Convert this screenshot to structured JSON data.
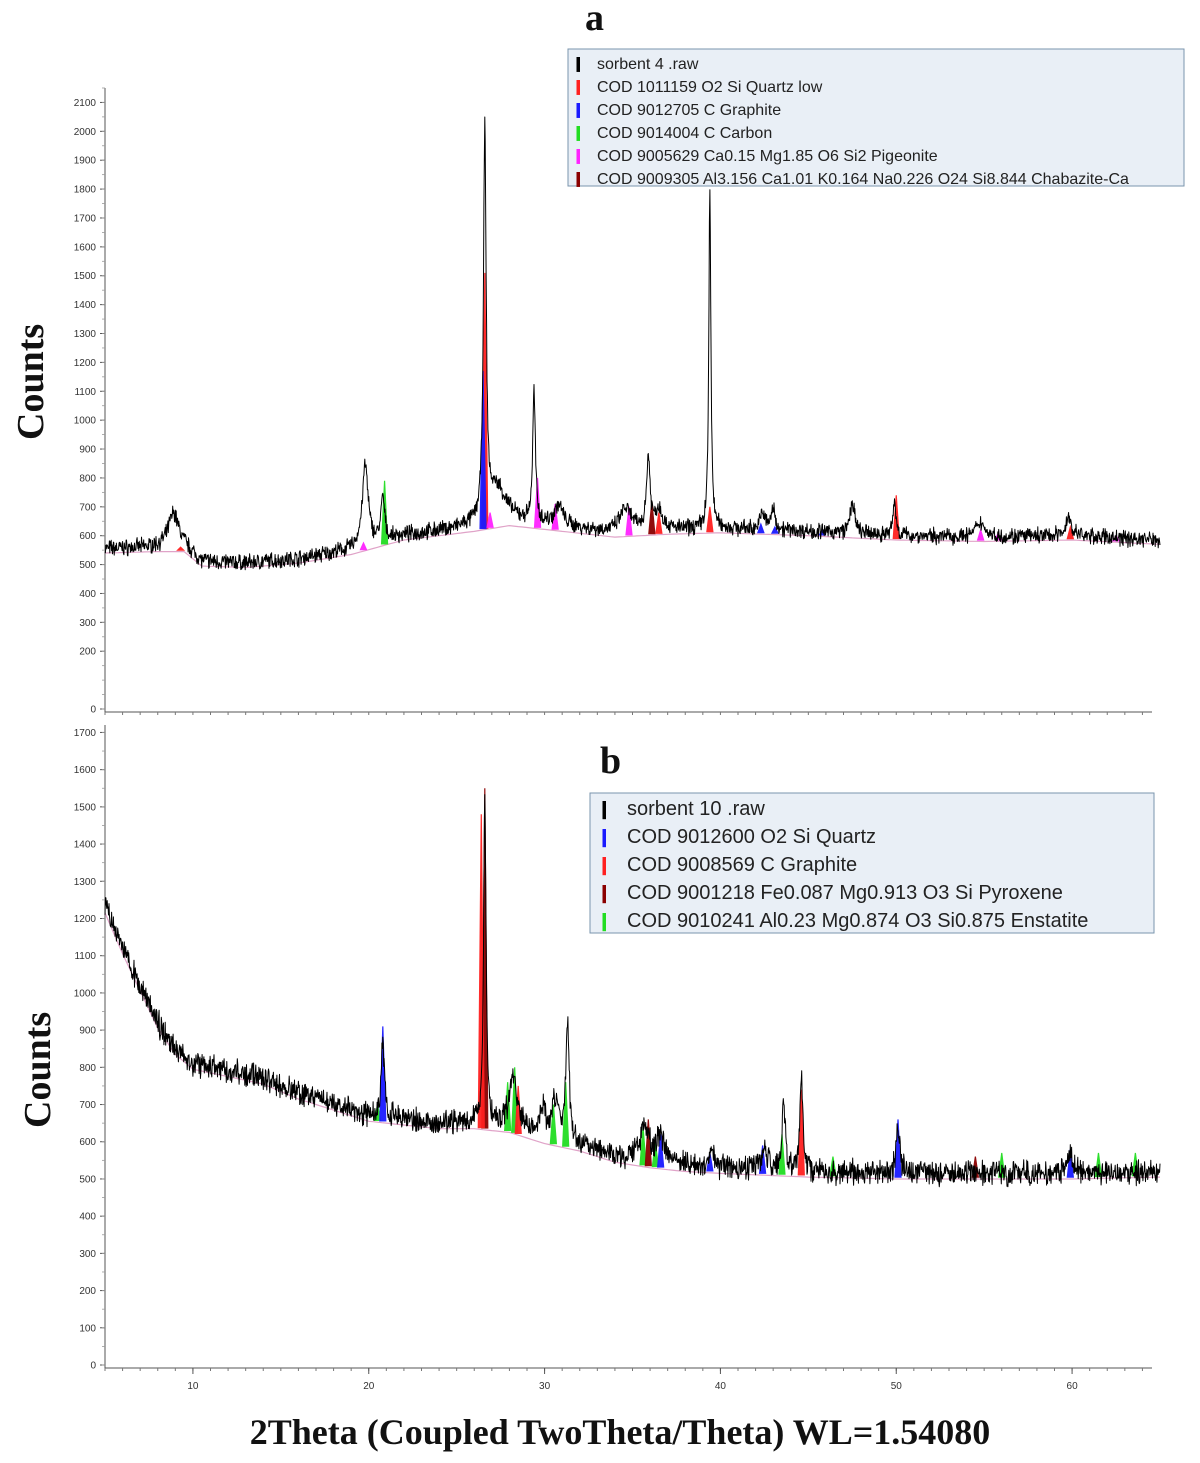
{
  "figure": {
    "xlabel": "2Theta (Coupled TwoTheta/Theta) WL=1.54080",
    "x_ticks": [
      "10",
      "20",
      "30",
      "40",
      "50",
      "60"
    ],
    "x_tick_values": [
      10,
      20,
      30,
      40,
      50,
      60
    ]
  },
  "chart_data": [
    {
      "type": "line",
      "panel_label": "a",
      "xlabel": "2Theta (Coupled TwoTheta/Theta) WL=1.54080",
      "ylabel": "Counts",
      "xlim": [
        5,
        65
      ],
      "ylim": [
        0,
        2150
      ],
      "y_ticks": [
        0,
        200,
        300,
        400,
        500,
        600,
        700,
        800,
        900,
        1000,
        1100,
        1200,
        1300,
        1400,
        1500,
        1600,
        1700,
        1800,
        1900,
        2000,
        2100
      ],
      "grid": false,
      "legend_position": "top-right",
      "legend": [
        {
          "label": "sorbent 4  .raw",
          "color": "#000000"
        },
        {
          "label": "COD 1011159 O2 Si Quartz low",
          "color": "#ff2020"
        },
        {
          "label": "COD 9012705 C Graphite",
          "color": "#1a1aff"
        },
        {
          "label": "COD 9014004 C Carbon",
          "color": "#22dd22"
        },
        {
          "label": "COD 9005629 Ca0.15 Mg1.85 O6 Si2 Pigeonite",
          "color": "#ff22ff"
        },
        {
          "label": "COD 9009305 Al3.156 Ca1.01 K0.164 Na0.226 O24 Si8.844 Chabazite-Ca",
          "color": "#8b0000"
        }
      ],
      "series": [
        {
          "name": "sorbent 4  .raw",
          "color": "#000000",
          "baseline": [
            [
              5,
              555
            ],
            [
              8,
              560
            ],
            [
              9.5,
              560
            ],
            [
              10.5,
              510
            ],
            [
              13,
              505
            ],
            [
              16,
              520
            ],
            [
              19,
              550
            ],
            [
              22,
              600
            ],
            [
              26,
              630
            ],
            [
              28,
              650
            ],
            [
              31,
              630
            ],
            [
              34,
              610
            ],
            [
              37,
              620
            ],
            [
              40,
              625
            ],
            [
              45,
              615
            ],
            [
              50,
              600
            ],
            [
              55,
              595
            ],
            [
              60,
              600
            ],
            [
              65,
              585
            ]
          ],
          "peaks": [
            {
              "x": 8.9,
              "height": 120,
              "width": 0.35
            },
            {
              "x": 19.8,
              "height": 280,
              "width": 0.2
            },
            {
              "x": 20.8,
              "height": 150,
              "width": 0.12
            },
            {
              "x": 26.6,
              "height": 1350,
              "width": 0.09
            },
            {
              "x": 27.3,
              "height": 120,
              "width": 0.6
            },
            {
              "x": 29.4,
              "height": 450,
              "width": 0.09
            },
            {
              "x": 30.8,
              "height": 70,
              "width": 0.3
            },
            {
              "x": 34.6,
              "height": 80,
              "width": 0.4
            },
            {
              "x": 35.9,
              "height": 250,
              "width": 0.12
            },
            {
              "x": 36.5,
              "height": 70,
              "width": 0.25
            },
            {
              "x": 39.4,
              "height": 1170,
              "width": 0.07
            },
            {
              "x": 42.4,
              "height": 60,
              "width": 0.15
            },
            {
              "x": 43.0,
              "height": 70,
              "width": 0.15
            },
            {
              "x": 47.5,
              "height": 110,
              "width": 0.15
            },
            {
              "x": 49.9,
              "height": 120,
              "width": 0.1
            },
            {
              "x": 54.8,
              "height": 50,
              "width": 0.3
            },
            {
              "x": 59.8,
              "height": 60,
              "width": 0.2
            }
          ]
        }
      ],
      "reference_sticks": [
        {
          "x": 9.3,
          "top": 560,
          "color": "#ff2020"
        },
        {
          "x": 19.7,
          "top": 575,
          "color": "#ff22ff"
        },
        {
          "x": 20.9,
          "top": 790,
          "color": "#22dd22"
        },
        {
          "x": 26.6,
          "top": 1510,
          "color": "#ff2020"
        },
        {
          "x": 26.5,
          "top": 1170,
          "color": "#1a1aff"
        },
        {
          "x": 26.9,
          "top": 680,
          "color": "#ff22ff"
        },
        {
          "x": 29.6,
          "top": 800,
          "color": "#ff22ff"
        },
        {
          "x": 30.6,
          "top": 710,
          "color": "#ff22ff"
        },
        {
          "x": 34.8,
          "top": 700,
          "color": "#ff22ff"
        },
        {
          "x": 36.1,
          "top": 720,
          "color": "#8b0000"
        },
        {
          "x": 36.5,
          "top": 680,
          "color": "#ff2020"
        },
        {
          "x": 39.4,
          "top": 700,
          "color": "#ff2020"
        },
        {
          "x": 42.3,
          "top": 640,
          "color": "#1a1aff"
        },
        {
          "x": 43.1,
          "top": 630,
          "color": "#1a1aff"
        },
        {
          "x": 45.8,
          "top": 620,
          "color": "#1a1aff"
        },
        {
          "x": 50.0,
          "top": 740,
          "color": "#ff2020"
        },
        {
          "x": 54.8,
          "top": 620,
          "color": "#ff22ff"
        },
        {
          "x": 55.8,
          "top": 610,
          "color": "#ff22ff"
        },
        {
          "x": 59.9,
          "top": 630,
          "color": "#ff2020"
        },
        {
          "x": 62.5,
          "top": 600,
          "color": "#ff22ff"
        }
      ]
    },
    {
      "type": "line",
      "panel_label": "b",
      "xlabel": "2Theta (Coupled TwoTheta/Theta) WL=1.54080",
      "ylabel": "Counts",
      "xlim": [
        5,
        65
      ],
      "ylim": [
        0,
        1720
      ],
      "y_ticks": [
        0,
        100,
        200,
        300,
        400,
        500,
        600,
        700,
        800,
        900,
        1000,
        1100,
        1200,
        1300,
        1400,
        1500,
        1600,
        1700
      ],
      "grid": false,
      "legend_position": "top-right",
      "legend": [
        {
          "label": "sorbent 10  .raw",
          "color": "#000000"
        },
        {
          "label": "COD 9012600 O2 Si Quartz",
          "color": "#1a1aff"
        },
        {
          "label": "COD 9008569 C Graphite",
          "color": "#ff2020"
        },
        {
          "label": "COD 9001218 Fe0.087 Mg0.913 O3 Si Pyroxene",
          "color": "#8b0000"
        },
        {
          "label": "COD 9010241 Al0.23 Mg0.874 O3 Si0.875 Enstatite",
          "color": "#22dd22"
        }
      ],
      "series": [
        {
          "name": "sorbent 10  .raw",
          "color": "#000000",
          "baseline": [
            [
              5,
              1230
            ],
            [
              6,
              1120
            ],
            [
              7,
              1020
            ],
            [
              8,
              920
            ],
            [
              9,
              850
            ],
            [
              10,
              810
            ],
            [
              12,
              790
            ],
            [
              14,
              770
            ],
            [
              16,
              730
            ],
            [
              18,
              700
            ],
            [
              20,
              670
            ],
            [
              22,
              660
            ],
            [
              24,
              650
            ],
            [
              26,
              650
            ],
            [
              28,
              640
            ],
            [
              30,
              610
            ],
            [
              32,
              590
            ],
            [
              34,
              560
            ],
            [
              36,
              545
            ],
            [
              38,
              535
            ],
            [
              40,
              530
            ],
            [
              45,
              520
            ],
            [
              50,
              515
            ],
            [
              55,
              515
            ],
            [
              60,
              515
            ],
            [
              65,
              520
            ]
          ],
          "peaks": [
            {
              "x": 20.8,
              "height": 220,
              "width": 0.09
            },
            {
              "x": 26.6,
              "height": 890,
              "width": 0.08
            },
            {
              "x": 28.2,
              "height": 140,
              "width": 0.25
            },
            {
              "x": 29.9,
              "height": 70,
              "width": 0.2
            },
            {
              "x": 30.6,
              "height": 110,
              "width": 0.2
            },
            {
              "x": 31.3,
              "height": 310,
              "width": 0.12
            },
            {
              "x": 35.7,
              "height": 100,
              "width": 0.3
            },
            {
              "x": 36.6,
              "height": 70,
              "width": 0.25
            },
            {
              "x": 39.5,
              "height": 40,
              "width": 0.15
            },
            {
              "x": 42.5,
              "height": 50,
              "width": 0.2
            },
            {
              "x": 43.6,
              "height": 180,
              "width": 0.12
            },
            {
              "x": 44.6,
              "height": 260,
              "width": 0.1
            },
            {
              "x": 50.1,
              "height": 120,
              "width": 0.12
            },
            {
              "x": 59.9,
              "height": 50,
              "width": 0.2
            }
          ]
        }
      ],
      "reference_sticks": [
        {
          "x": 20.5,
          "top": 700,
          "color": "#22dd22"
        },
        {
          "x": 20.8,
          "top": 910,
          "color": "#1a1aff"
        },
        {
          "x": 26.6,
          "top": 1550,
          "color": "#8b0000"
        },
        {
          "x": 26.4,
          "top": 1480,
          "color": "#ff2020"
        },
        {
          "x": 27.9,
          "top": 760,
          "color": "#22dd22"
        },
        {
          "x": 28.3,
          "top": 800,
          "color": "#22dd22"
        },
        {
          "x": 28.5,
          "top": 750,
          "color": "#ff2020"
        },
        {
          "x": 30.5,
          "top": 700,
          "color": "#22dd22"
        },
        {
          "x": 31.2,
          "top": 760,
          "color": "#22dd22"
        },
        {
          "x": 35.6,
          "top": 640,
          "color": "#22dd22"
        },
        {
          "x": 35.9,
          "top": 660,
          "color": "#8b0000"
        },
        {
          "x": 36.3,
          "top": 600,
          "color": "#22dd22"
        },
        {
          "x": 36.6,
          "top": 620,
          "color": "#1a1aff"
        },
        {
          "x": 39.4,
          "top": 570,
          "color": "#1a1aff"
        },
        {
          "x": 42.4,
          "top": 590,
          "color": "#1a1aff"
        },
        {
          "x": 43.5,
          "top": 620,
          "color": "#22dd22"
        },
        {
          "x": 44.6,
          "top": 740,
          "color": "#ff2020"
        },
        {
          "x": 46.4,
          "top": 560,
          "color": "#22dd22"
        },
        {
          "x": 50.1,
          "top": 660,
          "color": "#1a1aff"
        },
        {
          "x": 54.5,
          "top": 560,
          "color": "#8b0000"
        },
        {
          "x": 56.0,
          "top": 570,
          "color": "#22dd22"
        },
        {
          "x": 59.9,
          "top": 580,
          "color": "#1a1aff"
        },
        {
          "x": 61.5,
          "top": 570,
          "color": "#22dd22"
        },
        {
          "x": 63.6,
          "top": 570,
          "color": "#22dd22"
        }
      ]
    }
  ]
}
